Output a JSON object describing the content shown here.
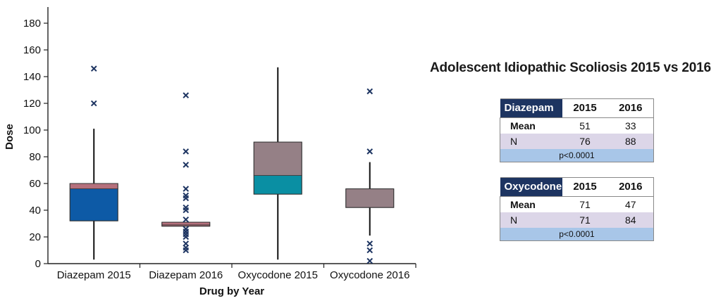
{
  "chart_data": {
    "type": "box",
    "title": "",
    "xlabel": "Drug by Year",
    "ylabel": "Dose",
    "ylim": [
      0,
      190
    ],
    "yticks": [
      0,
      20,
      40,
      60,
      80,
      100,
      120,
      140,
      160,
      180
    ],
    "grid": false,
    "categories": [
      "Diazepam 2015",
      "Diazepam 2016",
      "Oxycodone 2015",
      "Oxycodone 2016"
    ],
    "boxes": [
      {
        "category": "Diazepam 2015",
        "whisker_low": 3,
        "q1": 32,
        "median": 56,
        "q3": 60,
        "whisker_high": 101,
        "outliers": [
          120,
          146
        ],
        "lower_color": "#0d5aa6",
        "upper_color": "#b5707c"
      },
      {
        "category": "Diazepam 2016",
        "whisker_low": 28,
        "q1": 28,
        "median": 29,
        "q3": 31,
        "whisker_high": 31,
        "outliers": [
          10,
          12,
          15,
          20,
          22,
          24,
          26,
          33,
          40,
          42,
          49,
          51,
          56,
          74,
          84,
          126
        ],
        "lower_color": "#b5707c",
        "upper_color": "#b5707c"
      },
      {
        "category": "Oxycodone 2015",
        "whisker_low": 3,
        "q1": 52,
        "median": 66,
        "q3": 91,
        "whisker_high": 147,
        "outliers": [],
        "lower_color": "#0a8fa3",
        "upper_color": "#958086"
      },
      {
        "category": "Oxycodone 2016",
        "whisker_low": 21,
        "q1": 42,
        "median": 42,
        "q3": 56,
        "whisker_high": 76,
        "outliers": [
          2,
          10,
          15,
          84,
          129
        ],
        "lower_color": "#958086",
        "upper_color": "#958086"
      }
    ],
    "outlier_color": "#1d3461"
  },
  "side_title": "Adolescent Idiopathic Scoliosis 2015 vs 2016",
  "tables": [
    {
      "drug": "Diazepam",
      "years": [
        "2015",
        "2016"
      ],
      "rows": [
        {
          "label": "Mean",
          "values": [
            "51",
            "33"
          ]
        },
        {
          "label": "N",
          "values": [
            "76",
            "88"
          ]
        }
      ],
      "p_value": "p<0.0001"
    },
    {
      "drug": "Oxycodone",
      "years": [
        "2015",
        "2016"
      ],
      "rows": [
        {
          "label": "Mean",
          "values": [
            "71",
            "47"
          ]
        },
        {
          "label": "N",
          "values": [
            "71",
            "84"
          ]
        }
      ],
      "p_value": "p<0.0001"
    }
  ]
}
